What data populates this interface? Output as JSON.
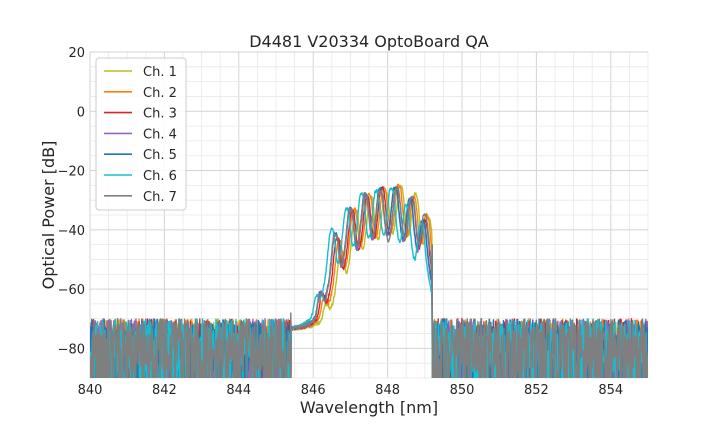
{
  "chart_data": {
    "type": "line",
    "title": "D4481 V20334 OptoBoard QA",
    "xlabel": "Wavelength [nm]",
    "ylabel": "Optical Power [dB]",
    "xlim": [
      840,
      855
    ],
    "ylim": [
      -90,
      20
    ],
    "xticks": [
      840,
      842,
      844,
      846,
      848,
      850,
      852,
      854
    ],
    "yticks": [
      20,
      0,
      -20,
      -40,
      -60,
      -80
    ],
    "xtick_labels": [
      "840",
      "842",
      "844",
      "846",
      "848",
      "850",
      "852",
      "854"
    ],
    "ytick_labels": [
      "20",
      "0",
      "−20",
      "−40",
      "−60",
      "−80"
    ],
    "grid": true,
    "minor_grid": true,
    "legend_position": "upper-left",
    "series": [
      {
        "name": "Ch. 1",
        "color": "#bcbd22",
        "peaks": [
          {
            "x": 846.35,
            "y": -67
          },
          {
            "x": 846.75,
            "y": -47
          },
          {
            "x": 847.15,
            "y": -34
          },
          {
            "x": 847.55,
            "y": -29
          },
          {
            "x": 847.95,
            "y": -27
          },
          {
            "x": 848.35,
            "y": -25
          },
          {
            "x": 848.75,
            "y": -28
          },
          {
            "x": 849.1,
            "y": -36
          }
        ]
      },
      {
        "name": "Ch. 2",
        "color": "#ff7f0e",
        "peaks": [
          {
            "x": 846.3,
            "y": -64
          },
          {
            "x": 846.7,
            "y": -44
          },
          {
            "x": 847.1,
            "y": -33
          },
          {
            "x": 847.5,
            "y": -28
          },
          {
            "x": 847.9,
            "y": -26
          },
          {
            "x": 848.3,
            "y": -25
          },
          {
            "x": 848.7,
            "y": -29
          },
          {
            "x": 849.05,
            "y": -35
          }
        ]
      },
      {
        "name": "Ch. 3",
        "color": "#d62728",
        "peaks": [
          {
            "x": 846.25,
            "y": -63
          },
          {
            "x": 846.65,
            "y": -43
          },
          {
            "x": 847.05,
            "y": -34
          },
          {
            "x": 847.45,
            "y": -29
          },
          {
            "x": 847.85,
            "y": -26
          },
          {
            "x": 848.25,
            "y": -26
          },
          {
            "x": 848.65,
            "y": -30
          },
          {
            "x": 849.0,
            "y": -37
          }
        ]
      },
      {
        "name": "Ch. 4",
        "color": "#9467bd",
        "peaks": [
          {
            "x": 846.2,
            "y": -62
          },
          {
            "x": 846.6,
            "y": -42
          },
          {
            "x": 847.0,
            "y": -34
          },
          {
            "x": 847.4,
            "y": -29
          },
          {
            "x": 847.8,
            "y": -27
          },
          {
            "x": 848.2,
            "y": -26
          },
          {
            "x": 848.6,
            "y": -31
          },
          {
            "x": 848.95,
            "y": -38
          }
        ]
      },
      {
        "name": "Ch. 5",
        "color": "#1f77b4",
        "peaks": [
          {
            "x": 846.2,
            "y": -63
          },
          {
            "x": 846.6,
            "y": -41
          },
          {
            "x": 847.0,
            "y": -33
          },
          {
            "x": 847.4,
            "y": -28
          },
          {
            "x": 847.8,
            "y": -26
          },
          {
            "x": 848.2,
            "y": -26
          },
          {
            "x": 848.6,
            "y": -30
          },
          {
            "x": 848.95,
            "y": -37
          }
        ]
      },
      {
        "name": "Ch. 6",
        "color": "#17becf",
        "peaks": [
          {
            "x": 846.1,
            "y": -64
          },
          {
            "x": 846.5,
            "y": -40
          },
          {
            "x": 846.9,
            "y": -33
          },
          {
            "x": 847.3,
            "y": -28
          },
          {
            "x": 847.7,
            "y": -27
          },
          {
            "x": 848.1,
            "y": -26
          },
          {
            "x": 848.5,
            "y": -32
          },
          {
            "x": 848.9,
            "y": -38
          }
        ]
      },
      {
        "name": "Ch. 7",
        "color": "#7f7f7f",
        "peaks": [
          {
            "x": 846.2,
            "y": -63
          },
          {
            "x": 846.6,
            "y": -42
          },
          {
            "x": 847.0,
            "y": -33
          },
          {
            "x": 847.4,
            "y": -28
          },
          {
            "x": 847.8,
            "y": -27
          },
          {
            "x": 848.25,
            "y": -26
          },
          {
            "x": 848.65,
            "y": -29
          },
          {
            "x": 849.0,
            "y": -35
          }
        ]
      }
    ],
    "noise_floor_db": -80,
    "band_edges_nm": [
      845.4,
      849.2
    ]
  }
}
